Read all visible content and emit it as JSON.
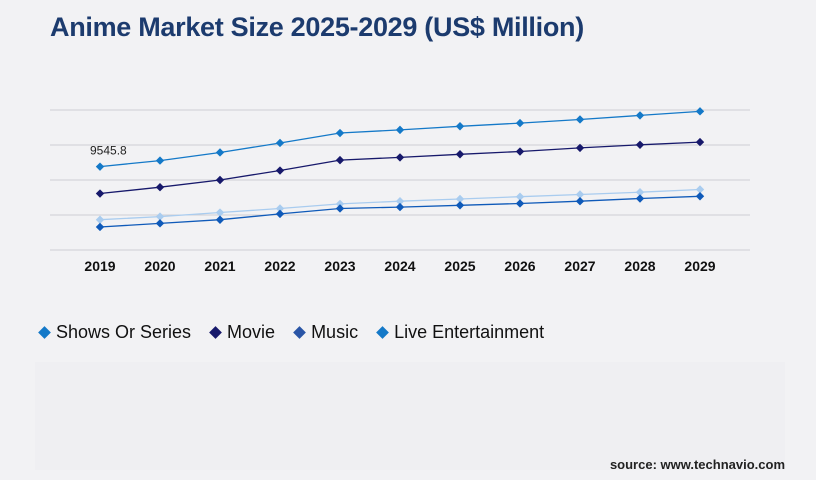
{
  "chart_data": {
    "type": "line",
    "title": "Anime Market Size 2025-2029 (US$ Million)",
    "categories": [
      "2019",
      "2020",
      "2021",
      "2022",
      "2023",
      "2024",
      "2025",
      "2026",
      "2027",
      "2028",
      "2029"
    ],
    "annotation": {
      "text": "9545.8",
      "series": 0,
      "index": 0
    },
    "grid": true,
    "legend_position": "bottom-left",
    "series": [
      {
        "name": "Shows Or Series",
        "color": "#1479c8",
        "values": [
          9545.8,
          9680,
          9860,
          10070,
          10290,
          10360,
          10440,
          10510,
          10590,
          10680,
          10770
        ]
      },
      {
        "name": "Movie",
        "color": "#17196b",
        "values": [
          8950,
          9090,
          9250,
          9460,
          9690,
          9750,
          9820,
          9880,
          9960,
          10030,
          10090
        ]
      },
      {
        "name": "Music",
        "color": "#a9ccef",
        "values": [
          8370,
          8440,
          8530,
          8620,
          8720,
          8780,
          8830,
          8880,
          8930,
          8980,
          9040
        ]
      },
      {
        "name": "Live Entertainment",
        "color": "#0f5ab9",
        "values": [
          8210,
          8290,
          8370,
          8500,
          8620,
          8650,
          8690,
          8730,
          8780,
          8840,
          8890
        ]
      }
    ]
  },
  "legend": [
    {
      "label": "Shows Or Series",
      "color": "#1479c8"
    },
    {
      "label": "Movie",
      "color": "#17196b"
    },
    {
      "label": "Music",
      "color": "#2a55a6"
    },
    {
      "label": "Live Entertainment",
      "color": "#1479c8"
    }
  ],
  "source": "source: www.technavio.com"
}
